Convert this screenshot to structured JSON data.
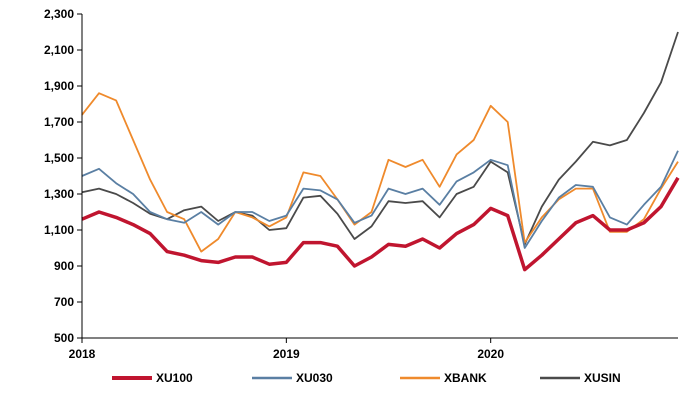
{
  "chart_data": {
    "type": "line",
    "title": "",
    "xlabel": "",
    "ylabel": "",
    "ylim": [
      500,
      2300
    ],
    "yticks": [
      500,
      700,
      900,
      1100,
      1300,
      1500,
      1700,
      1900,
      2100,
      2300
    ],
    "ytick_labels": [
      "500",
      "700",
      "900",
      "1,100",
      "1,300",
      "1,500",
      "1,700",
      "1,900",
      "2,100",
      "2,300"
    ],
    "xlim": [
      "2018-01",
      "2020-12"
    ],
    "xtick_labels": [
      "2018",
      "2019",
      "2020"
    ],
    "grid": false,
    "legend_position": "bottom",
    "x": [
      "2018-01",
      "2018-02",
      "2018-03",
      "2018-04",
      "2018-05",
      "2018-06",
      "2018-07",
      "2018-08",
      "2018-09",
      "2018-10",
      "2018-11",
      "2018-12",
      "2019-01",
      "2019-02",
      "2019-03",
      "2019-04",
      "2019-05",
      "2019-06",
      "2019-07",
      "2019-08",
      "2019-09",
      "2019-10",
      "2019-11",
      "2019-12",
      "2020-01",
      "2020-02",
      "2020-03",
      "2020-04",
      "2020-05",
      "2020-06",
      "2020-07",
      "2020-08",
      "2020-09",
      "2020-10",
      "2020-11",
      "2020-12"
    ],
    "series": [
      {
        "name": "XU100",
        "color": "#c0152f",
        "values": [
          1160,
          1200,
          1170,
          1130,
          1080,
          980,
          960,
          930,
          920,
          950,
          950,
          910,
          920,
          1030,
          1030,
          1010,
          900,
          950,
          1020,
          1010,
          1050,
          1000,
          1080,
          1130,
          1220,
          1180,
          880,
          960,
          1050,
          1140,
          1180,
          1100,
          1100,
          1140,
          1230,
          1390
        ]
      },
      {
        "name": "XU030",
        "color": "#5a7fa3",
        "values": [
          1400,
          1440,
          1360,
          1300,
          1200,
          1160,
          1140,
          1200,
          1130,
          1200,
          1200,
          1150,
          1180,
          1330,
          1320,
          1270,
          1140,
          1180,
          1330,
          1300,
          1330,
          1240,
          1370,
          1420,
          1490,
          1460,
          1000,
          1150,
          1280,
          1350,
          1340,
          1170,
          1130,
          1240,
          1340,
          1540
        ]
      },
      {
        "name": "XBANK",
        "color": "#ef8a2c",
        "values": [
          1740,
          1860,
          1820,
          1600,
          1380,
          1200,
          1160,
          980,
          1050,
          1200,
          1170,
          1120,
          1170,
          1420,
          1400,
          1270,
          1130,
          1200,
          1490,
          1450,
          1490,
          1340,
          1520,
          1600,
          1790,
          1700,
          1030,
          1170,
          1270,
          1330,
          1330,
          1090,
          1090,
          1160,
          1330,
          1480
        ]
      },
      {
        "name": "XUSIN",
        "color": "#4a4a4a",
        "values": [
          1310,
          1330,
          1300,
          1250,
          1190,
          1160,
          1210,
          1230,
          1150,
          1200,
          1180,
          1100,
          1110,
          1280,
          1290,
          1190,
          1050,
          1120,
          1260,
          1250,
          1260,
          1170,
          1300,
          1340,
          1480,
          1420,
          1020,
          1230,
          1380,
          1480,
          1590,
          1570,
          1600,
          1750,
          1920,
          2200
        ]
      }
    ]
  }
}
